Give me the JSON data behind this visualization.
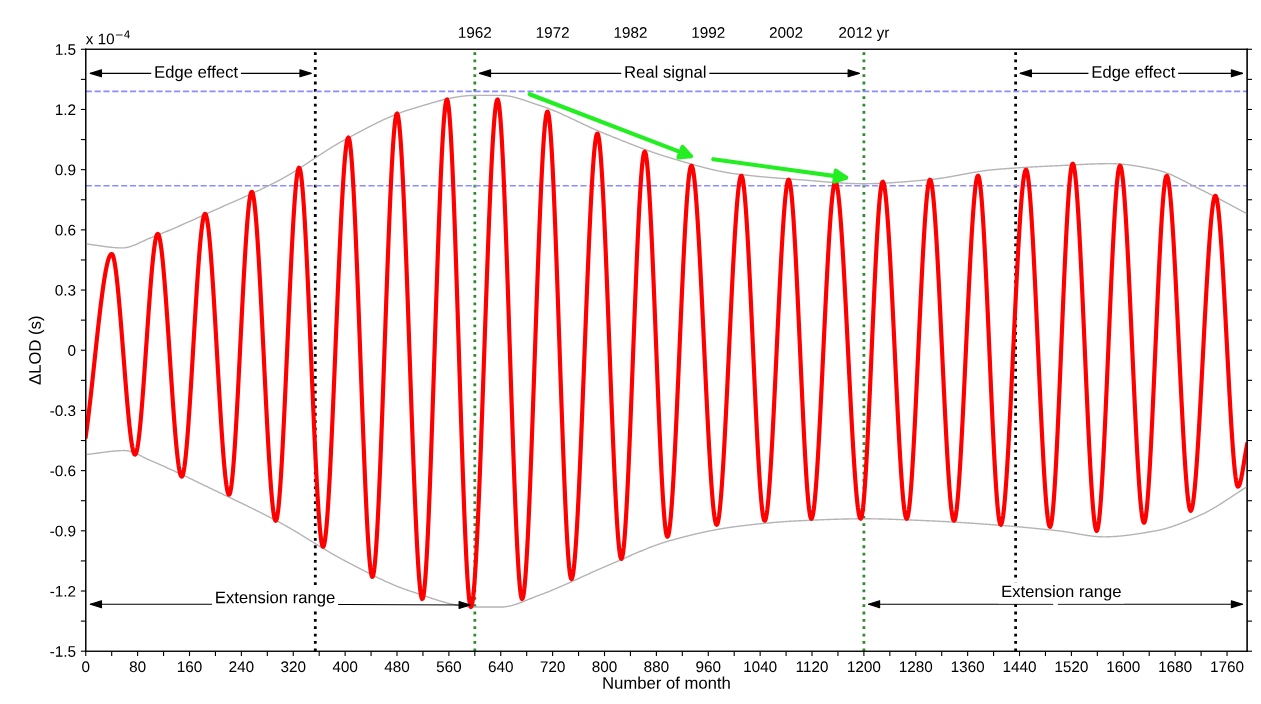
{
  "chart_data": {
    "type": "line",
    "xlabel": "Number of month",
    "ylabel": "ΔLOD (s)",
    "annotations": [
      "x 10$^{−4}$",
      "Edge effect",
      "Real signal",
      {
        "text": "Edge effect",
        "x": 1434,
        "y": 1.38
      },
      {
        "text": "Extension range",
        "x": 600,
        "y": -1.27
      },
      "Extension range"
    ],
    "xlim": [
      0,
      1791
    ],
    "ylim": [
      -1.5,
      1.5
    ],
    "xticks": [
      0,
      {
        "value": 40,
        "label": null
      },
      80,
      {
        "value": 120,
        "label": null
      },
      160,
      {
        "value": 200,
        "label": null
      },
      240,
      {
        "value": 280,
        "label": null
      },
      320,
      {
        "value": 360,
        "label": null
      },
      400,
      {
        "value": 440,
        "label": null
      },
      480,
      {
        "value": 520,
        "label": null
      },
      560,
      {
        "value": 600,
        "label": null
      },
      640,
      {
        "value": 680,
        "label": null
      },
      720,
      {
        "value": 760,
        "label": null
      },
      800,
      {
        "value": 840,
        "label": null
      },
      880,
      {
        "value": 920,
        "label": null
      },
      960,
      {
        "value": 1000,
        "label": null
      },
      1040,
      {
        "value": 1080,
        "label": null
      },
      1120,
      {
        "value": 1160,
        "label": null
      },
      1200,
      {
        "value": 1240,
        "label": null
      },
      1280,
      {
        "value": 1320,
        "label": null
      },
      1360,
      {
        "value": 1400,
        "label": null
      },
      1440,
      {
        "value": 1480,
        "label": null
      },
      1520,
      {
        "value": 1560,
        "label": null
      },
      1600,
      {
        "value": 1640,
        "label": null
      },
      1680,
      {
        "value": 1720,
        "label": null
      },
      1760
    ],
    "yticks": [
      -1.5,
      {
        "value": -1.35,
        "label": null
      },
      -1.2,
      {
        "value": -1.05,
        "label": null
      },
      -0.9,
      {
        "value": -0.75,
        "label": null
      },
      -0.6,
      {
        "value": -0.45,
        "label": null
      },
      -0.3,
      {
        "value": -0.15,
        "label": null
      },
      0,
      {
        "value": 0.15,
        "label": null
      },
      0.3,
      {
        "value": 0.45,
        "label": null
      },
      0.6,
      {
        "value": 0.75,
        "label": null
      },
      0.9,
      {
        "value": 1.05,
        "label": null
      },
      1.2,
      {
        "value": 1.35,
        "label": null
      },
      1.5
    ],
    "x2lim": [
      1912,
      2061.25
    ],
    "x2ticks": [
      1962,
      1972,
      1982,
      1992,
      2002,
      {
        "value": 2012,
        "label": "2012 yr"
      }
    ],
    "grid": false,
    "legend": false,
    "marker": "none",
    "series": [
      {
        "color": "#b4b4b4",
        "line_style": "solid",
        "x": [
          0,
          56,
          100,
          200,
          300,
          400,
          500,
          600,
          640,
          700,
          800,
          900,
          1000,
          1100,
          1200,
          1300,
          1400,
          1500,
          1580,
          1650,
          1720,
          1791
        ],
        "values": [
          0.53,
          0.51,
          0.56,
          0.7,
          0.85,
          1.05,
          1.2,
          1.27,
          1.27,
          1.22,
          1.08,
          0.96,
          0.88,
          0.85,
          0.83,
          0.85,
          0.9,
          0.92,
          0.93,
          0.9,
          0.8,
          0.68
        ]
      },
      {
        "color": "#b4b4b4",
        "line_style": "solid",
        "x": [
          0,
          60,
          100,
          200,
          300,
          400,
          500,
          600,
          640,
          700,
          800,
          900,
          1000,
          1100,
          1200,
          1300,
          1400,
          1500,
          1570,
          1650,
          1720,
          1791
        ],
        "values": [
          -0.52,
          -0.5,
          -0.55,
          -0.7,
          -0.86,
          -1.05,
          -1.2,
          -1.28,
          -1.28,
          -1.22,
          -1.08,
          -0.95,
          -0.88,
          -0.85,
          -0.84,
          -0.85,
          -0.87,
          -0.9,
          -0.93,
          -0.9,
          -0.82,
          -0.68
        ]
      },
      {
        "color": "#ff0000",
        "line_style": "solid",
        "x": [
          0,
          40,
          76,
          111,
          148,
          184,
          221,
          256,
          293,
          329,
          366,
          405,
          442,
          480,
          519,
          557,
          594,
          635,
          673,
          712,
          749,
          789,
          826,
          862,
          897,
          934,
          973,
          1011,
          1047,
          1084,
          1119,
          1156,
          1195,
          1229,
          1266,
          1302,
          1339,
          1376,
          1411,
          1450,
          1487,
          1522,
          1559,
          1595,
          1632,
          1667,
          1704,
          1742,
          1777,
          1791
        ],
        "values": [
          -0.43,
          0.48,
          -0.52,
          0.58,
          -0.63,
          0.68,
          -0.72,
          0.79,
          -0.85,
          0.91,
          -0.98,
          1.06,
          -1.13,
          1.18,
          -1.24,
          1.25,
          -1.28,
          1.25,
          -1.24,
          1.19,
          -1.14,
          1.08,
          -1.04,
          0.99,
          -0.93,
          0.92,
          -0.87,
          0.87,
          -0.85,
          0.85,
          -0.84,
          0.84,
          -0.84,
          0.84,
          -0.84,
          0.85,
          -0.85,
          0.87,
          -0.87,
          0.9,
          -0.88,
          0.93,
          -0.9,
          0.92,
          -0.86,
          0.87,
          -0.8,
          0.77,
          -0.68,
          -0.47
        ]
      }
    ],
    "ref_lines": [
      {
        "axis": "x",
        "value": 354,
        "color": "#000000",
        "line_style": "dotted"
      },
      {
        "axis": "x",
        "value": 600,
        "color": "#2e8b2e",
        "line_style": "dotted"
      },
      {
        "axis": "x",
        "value": 1200,
        "color": "#2e8b2e",
        "line_style": "dotted"
      },
      {
        "axis": "x",
        "value": 1434,
        "color": "#000000",
        "line_style": "dotted"
      },
      {
        "axis": "y",
        "value": 1.29,
        "color": "#8c8cff",
        "line_style": "dashed"
      },
      {
        "axis": "y",
        "value": 0.82,
        "color": "#8c8cff",
        "line_style": "dashed"
      }
    ]
  }
}
